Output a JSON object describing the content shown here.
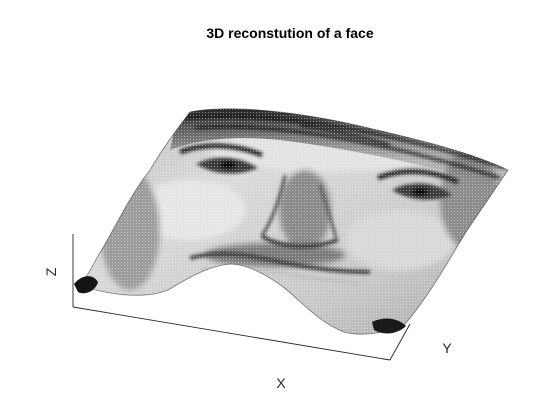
{
  "chart_data": {
    "type": "surface",
    "title": "3D reconstution of a face",
    "xlabel": "X",
    "ylabel": "Y",
    "zlabel": "Z",
    "colormap": "gray",
    "grid": false,
    "box": false,
    "features": [
      "hairline-top",
      "left-eye",
      "right-eye",
      "nose",
      "upper-lip"
    ]
  },
  "colors": {
    "background": "#ffffff",
    "axis": "#262626",
    "surface_dark": "#1a1a1a",
    "surface_light": "#ebebeb"
  }
}
